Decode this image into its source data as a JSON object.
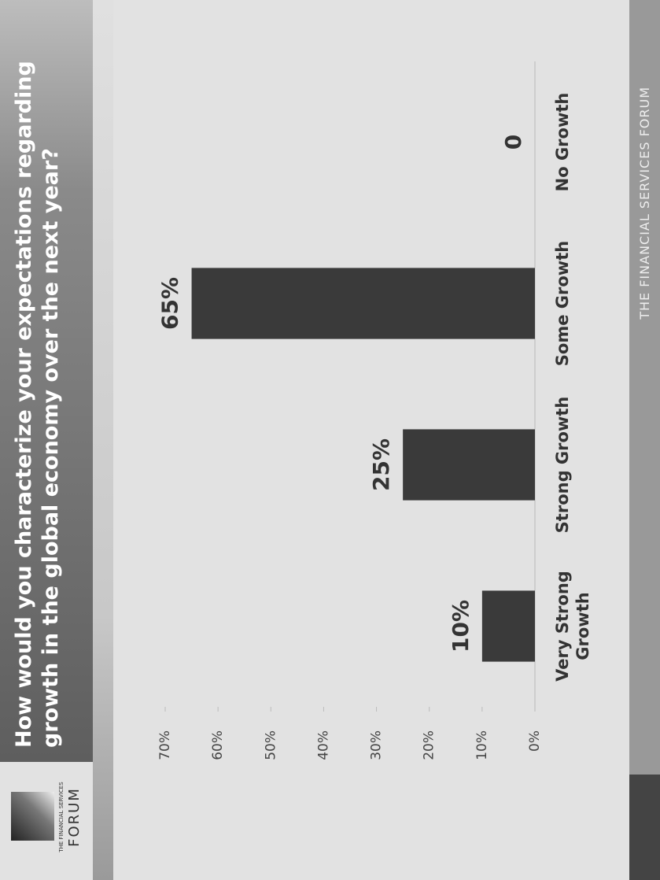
{
  "header": {
    "title": "How would you characterize your expectations regarding growth in the global economy over the next year?",
    "logo": [
      "THE FINANCIAL SERVICES",
      "FORUM"
    ]
  },
  "chart_data": {
    "type": "bar",
    "categories": [
      "Very Strong Growth",
      "Strong Growth",
      "Some Growth",
      "No Growth"
    ],
    "values": [
      10,
      25,
      65,
      0
    ],
    "value_labels": [
      "10%",
      "25%",
      "65%",
      "0"
    ],
    "color": "#3a3a3a",
    "ylim": [
      0,
      70
    ],
    "yticks": [
      {
        "value": 0,
        "label": "0%"
      },
      {
        "value": 10,
        "label": "10%"
      },
      {
        "value": 20,
        "label": "20%"
      },
      {
        "value": 30,
        "label": "30%"
      },
      {
        "value": 40,
        "label": "40%"
      },
      {
        "value": 50,
        "label": "50%"
      },
      {
        "value": 60,
        "label": "60%"
      },
      {
        "value": 70,
        "label": "70%"
      }
    ],
    "grid": false
  },
  "footer": {
    "text": "THE FINANCIAL SERVICES FORUM"
  }
}
